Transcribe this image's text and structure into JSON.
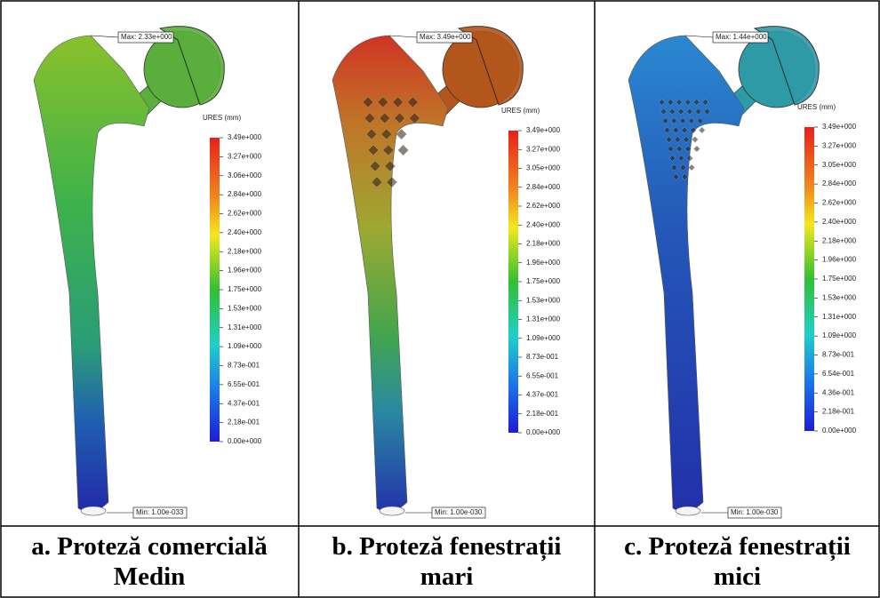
{
  "panels": [
    {
      "legend_title": "URES (mm)",
      "legend_labels": [
        "3.49e+000",
        "3.27e+000",
        "3.06e+000",
        "2.84e+000",
        "2.62e+000",
        "2.40e+000",
        "2.18e+000",
        "1.96e+000",
        "1.75e+000",
        "1.53e+000",
        "1.31e+000",
        "1.09e+000",
        "8.73e-001",
        "6.55e-001",
        "4.37e-001",
        "2.18e-001",
        "0.00e+000"
      ],
      "max_label": "Max: 2.33e+000",
      "min_label": "Min: 1.00e-033",
      "caption": "a. Proteză comercială Medin"
    },
    {
      "legend_title": "URES (mm)",
      "legend_labels": [
        "3.49e+000",
        "3.27e+000",
        "3.05e+000",
        "2.84e+000",
        "2.62e+000",
        "2.40e+000",
        "2.18e+000",
        "1.96e+000",
        "1.75e+000",
        "1.53e+000",
        "1.31e+000",
        "1.09e+000",
        "8.73e-001",
        "6.55e-001",
        "4.37e-001",
        "2.18e-001",
        "0.00e+000"
      ],
      "max_label": "Max: 3.49e+000",
      "min_label": "Min: 1.00e-030",
      "caption": "b. Proteză fenestrații mari"
    },
    {
      "legend_title": "URES (mm)",
      "legend_labels": [
        "3.49e+000",
        "3.27e+000",
        "3.05e+000",
        "2.84e+000",
        "2.62e+000",
        "2.40e+000",
        "2.18e+000",
        "1.96e+000",
        "1.75e+000",
        "1.53e+000",
        "1.31e+000",
        "1.09e+000",
        "8.73e-001",
        "6.54e-001",
        "4.36e-001",
        "2.18e-001",
        "0.00e+000"
      ],
      "max_label": "Max: 1.44e+000",
      "min_label": "Min: 1.00e-030",
      "caption": "c. Proteză fenestrații mici"
    }
  ]
}
